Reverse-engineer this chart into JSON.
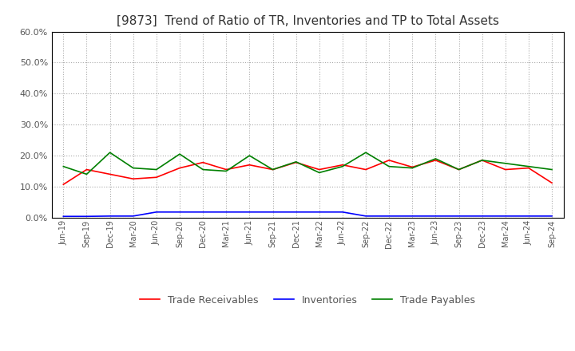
{
  "title": "[9873]  Trend of Ratio of TR, Inventories and TP to Total Assets",
  "x_labels": [
    "Jun-19",
    "Sep-19",
    "Dec-19",
    "Mar-20",
    "Jun-20",
    "Sep-20",
    "Dec-20",
    "Mar-21",
    "Jun-21",
    "Sep-21",
    "Dec-21",
    "Mar-22",
    "Jun-22",
    "Sep-22",
    "Dec-22",
    "Mar-23",
    "Jun-23",
    "Sep-23",
    "Dec-23",
    "Mar-24",
    "Jun-24",
    "Sep-24"
  ],
  "trade_receivables": [
    0.107,
    0.155,
    0.14,
    0.125,
    0.13,
    0.16,
    0.178,
    0.155,
    0.17,
    0.155,
    0.178,
    0.155,
    0.17,
    0.155,
    0.185,
    0.163,
    0.185,
    0.155,
    0.185,
    0.155,
    0.16,
    0.112
  ],
  "inventories": [
    0.004,
    0.004,
    0.005,
    0.005,
    0.018,
    0.018,
    0.018,
    0.018,
    0.018,
    0.018,
    0.018,
    0.018,
    0.018,
    0.005,
    0.005,
    0.005,
    0.005,
    0.005,
    0.005,
    0.005,
    0.005,
    0.005
  ],
  "trade_payables": [
    0.165,
    0.14,
    0.21,
    0.16,
    0.155,
    0.205,
    0.155,
    0.15,
    0.2,
    0.155,
    0.18,
    0.145,
    0.165,
    0.21,
    0.165,
    0.16,
    0.19,
    0.155,
    0.185,
    0.175,
    0.165,
    0.155
  ],
  "tr_color": "#ff0000",
  "inv_color": "#0000ff",
  "tp_color": "#008000",
  "ylim": [
    0.0,
    0.6
  ],
  "yticks": [
    0.0,
    0.1,
    0.2,
    0.3,
    0.4,
    0.5,
    0.6
  ],
  "background_color": "#ffffff",
  "grid_color": "#aaaaaa"
}
